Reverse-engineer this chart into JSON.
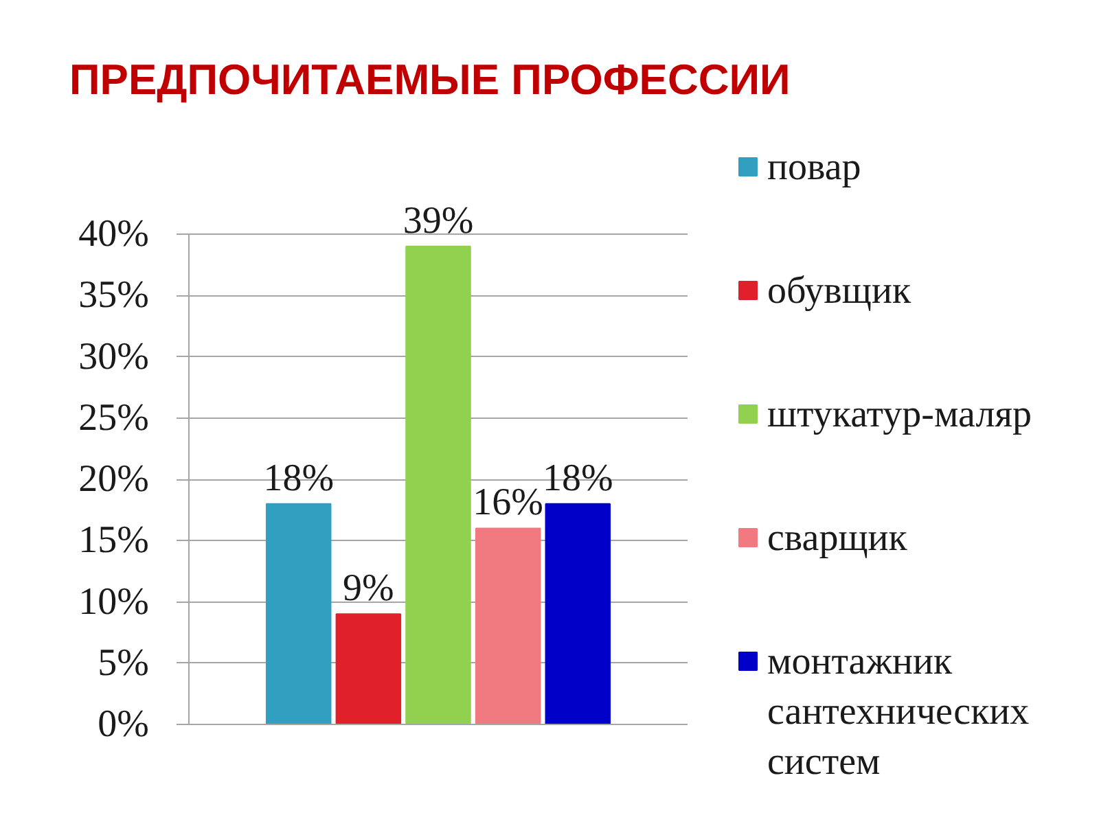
{
  "chart_data": {
    "type": "bar",
    "title": "ПРЕДПОЧИТАЕМЫЕ ПРОФЕССИИ",
    "categories": [
      null
    ],
    "series": [
      {
        "name": "повар",
        "color": "#31a0c0",
        "values": [
          18
        ],
        "value_labels": [
          "18%"
        ]
      },
      {
        "name": "обувщик",
        "color": "#e0202a",
        "values": [
          9
        ],
        "value_labels": [
          "9%"
        ]
      },
      {
        "name": "штукатур-маляр",
        "color": "#92d050",
        "values": [
          39
        ],
        "value_labels": [
          "39%"
        ]
      },
      {
        "name": "сварщик",
        "color": "#f07a80",
        "values": [
          16
        ],
        "value_labels": [
          "16%"
        ]
      },
      {
        "name": "монтажник сантехнических систем",
        "color": "#0000c8",
        "values": [
          18
        ],
        "value_labels": [
          "18%"
        ]
      }
    ],
    "ylim": [
      0,
      40
    ],
    "yticks": [
      {
        "value": 0,
        "label": "0%"
      },
      {
        "value": 5,
        "label": "5%"
      },
      {
        "value": 10,
        "label": "10%"
      },
      {
        "value": 15,
        "label": "15%"
      },
      {
        "value": 20,
        "label": "20%"
      },
      {
        "value": 25,
        "label": "25%"
      },
      {
        "value": 30,
        "label": "30%"
      },
      {
        "value": 35,
        "label": "35%"
      },
      {
        "value": 40,
        "label": "40%"
      }
    ],
    "grid": "y",
    "legend": "right",
    "tick_labels": "y"
  }
}
